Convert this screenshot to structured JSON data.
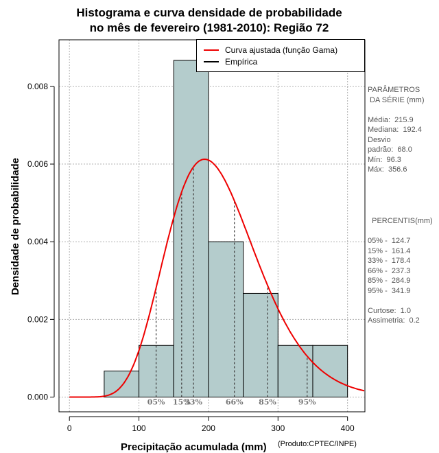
{
  "chart_data": {
    "type": "bar",
    "title_line1": "Histograma e curva densidade de probabilidade",
    "title_line2": "no mês de fevereiro (1981-2010): Região 72",
    "xlabel": "Precipitação acumulada (mm)",
    "ylabel": "Densidade de probabilidade",
    "credit": "(Produto:CPTEC/INPE)",
    "xlim": [
      -15,
      425
    ],
    "ylim": [
      -0.00038,
      0.0092
    ],
    "x_ticks": [
      0,
      100,
      200,
      300,
      400
    ],
    "x_tick_labels": [
      "0",
      "100",
      "200",
      "300",
      "400"
    ],
    "y_ticks": [
      0,
      0.002,
      0.004,
      0.006,
      0.008
    ],
    "y_tick_labels": [
      "0.000",
      "0.002",
      "0.004",
      "0.006",
      "0.008"
    ],
    "grid": true,
    "bins": [
      {
        "start": 50,
        "end": 100,
        "density": 0.00067
      },
      {
        "start": 100,
        "end": 150,
        "density": 0.00133
      },
      {
        "start": 150,
        "end": 200,
        "density": 0.00867
      },
      {
        "start": 200,
        "end": 250,
        "density": 0.004
      },
      {
        "start": 250,
        "end": 300,
        "density": 0.00267
      },
      {
        "start": 300,
        "end": 350,
        "density": 0.00133
      },
      {
        "start": 350,
        "end": 400,
        "density": 0.00133
      }
    ],
    "gamma_fit": {
      "mean": 215.9,
      "sd": 68.0
    },
    "legend": {
      "position": "top-right",
      "entries": [
        {
          "label": "Curva ajustada (função Gama)",
          "color": "#ee0000"
        },
        {
          "label": "Empírica",
          "color": "#000000"
        }
      ]
    },
    "percentile_markers": [
      {
        "label": "05%",
        "value": 124.7
      },
      {
        "label": "15%",
        "value": 161.4
      },
      {
        "label": "33%",
        "value": 178.4
      },
      {
        "label": "66%",
        "value": 237.3
      },
      {
        "label": "85%",
        "value": 284.9
      },
      {
        "label": "95%",
        "value": 341.9
      }
    ]
  },
  "colors": {
    "bar_fill": "#b4cccc",
    "curve": "#ee0000",
    "grid": "#b0b0b0",
    "marker_text": "#777777"
  },
  "stats_panel": {
    "parametros": "PARÂMETROS\n DA SÉRIE (mm)\n\nMédia:  215.9\nMediana:  192.4\nDesvio\npadrão:  68.0\nMín:  96.3\nMáx:  356.6",
    "percentis": "  PERCENTIS(mm)\n\n05% -  124.7\n15% -  161.4\n33% -  178.4\n66% -  237.3\n85% -  284.9\n95% -  341.9\n\nCurtose:  1.0\nAssimetria:  0.2"
  }
}
